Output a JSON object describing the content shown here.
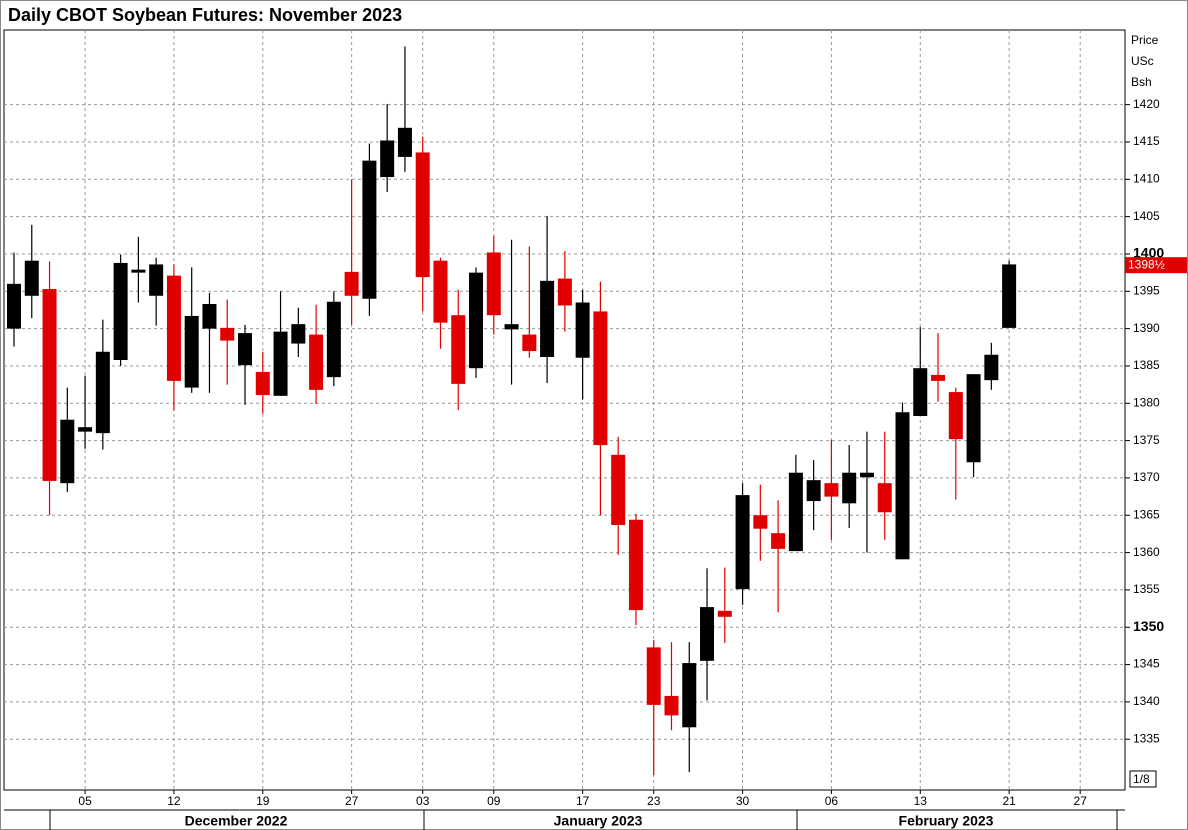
{
  "chart_data": {
    "type": "candlestick",
    "title": "Daily CBOT Soybean Futures: November 2023",
    "unit_label": [
      "Price",
      "USc",
      "Bsh"
    ],
    "scale_note": "1/8",
    "categories": [
      null,
      null,
      null,
      null,
      "05",
      null,
      null,
      null,
      null,
      "12",
      null,
      null,
      null,
      null,
      "19",
      null,
      null,
      null,
      null,
      "27",
      null,
      null,
      null,
      "03",
      null,
      null,
      null,
      "09",
      null,
      null,
      null,
      null,
      "17",
      null,
      null,
      null,
      "23",
      null,
      null,
      null,
      null,
      "30",
      null,
      null,
      null,
      null,
      "06",
      null,
      null,
      null,
      null,
      "13",
      null,
      null,
      null,
      null,
      "21",
      null,
      null,
      null,
      "27"
    ],
    "months": [
      "December 2022",
      "January 2023",
      "February 2023"
    ],
    "open": [
      1390,
      1394.4,
      1395.3,
      1369.3,
      1376.2,
      1376,
      1385.8,
      1397.5,
      1394.4,
      1397.1,
      1382.1,
      1390,
      1390.1,
      1385.1,
      1384.2,
      1381,
      1388,
      1389.2,
      1383.5,
      1397.6,
      1394,
      1410.3,
      1413,
      1413.6,
      1399.1,
      1391.8,
      1384.7,
      1400.2,
      1389.9,
      1389.2,
      1386.2,
      1396.7,
      1386.1,
      1392.3,
      1373.1,
      1364.4,
      1347.3,
      1340.8,
      1336.6,
      1345.5,
      1352.2,
      1355.1,
      1365,
      1362.6,
      1360.2,
      1366.9,
      1369.3,
      1366.6,
      1370.1,
      1369.3,
      1359.1,
      1378.3,
      1383.8,
      1381.5,
      1372.1,
      1383.1,
      1390.1,
      null,
      null,
      null,
      null
    ],
    "high": [
      1400.2,
      1403.9,
      1399,
      1382.1,
      1383.7,
      1391.2,
      1399.9,
      1402.3,
      1399.5,
      1398.6,
      1398.2,
      1394.8,
      1393.9,
      1390.5,
      1386.9,
      1395,
      1392.8,
      1393.2,
      1395,
      1410,
      1414.8,
      1420.1,
      1427.8,
      1415.7,
      1399.5,
      1395.2,
      1398.2,
      1402.4,
      1401.9,
      1401,
      1405.1,
      1400.4,
      1395.2,
      1396.3,
      1375.5,
      1365.2,
      1348.3,
      1348,
      1348,
      1357.9,
      1358,
      1369.3,
      1369.1,
      1367,
      1373.1,
      1372.4,
      1375.1,
      1374.4,
      1376.2,
      1376.2,
      1380.1,
      1390.2,
      1389.4,
      1382.1,
      1383.9,
      1388.1,
      1399.1,
      null,
      null,
      null,
      null
    ],
    "low": [
      1387.6,
      1391.4,
      1365,
      1368.1,
      1373.9,
      1373.8,
      1385,
      1393.5,
      1390.4,
      1379,
      1381.4,
      1381.4,
      1382.5,
      1379.8,
      1378.6,
      1381,
      1386.2,
      1379.9,
      1382.3,
      1390.5,
      1391.7,
      1408.3,
      1411,
      1392.3,
      1387.3,
      1379.1,
      1383.4,
      1389.2,
      1382.5,
      1386.1,
      1382.7,
      1389.6,
      1380.5,
      1365,
      1359.7,
      1350.3,
      1330.2,
      1336.2,
      1330.6,
      1340.2,
      1347.9,
      1353,
      1358.9,
      1352,
      1360.2,
      1363,
      1361.7,
      1363.3,
      1360,
      1361.7,
      1359.1,
      1378.3,
      1380.2,
      1367.1,
      1370.1,
      1381.8,
      1390.1,
      null,
      null,
      null,
      null
    ],
    "close": [
      1396,
      1399.1,
      1369.6,
      1377.8,
      1376.8,
      1386.9,
      1398.8,
      1397.9,
      1398.6,
      1383,
      1391.7,
      1393.3,
      1388.4,
      1389.4,
      1381.1,
      1389.6,
      1390.6,
      1381.8,
      1393.6,
      1394.4,
      1412.5,
      1415.2,
      1416.9,
      1396.9,
      1390.8,
      1382.6,
      1397.5,
      1391.8,
      1390.6,
      1387,
      1396.4,
      1393.1,
      1393.5,
      1374.4,
      1363.7,
      1352.3,
      1339.6,
      1338.2,
      1345.2,
      1352.7,
      1351.4,
      1367.7,
      1363.2,
      1360.5,
      1370.7,
      1369.7,
      1367.5,
      1370.7,
      1370.7,
      1365.4,
      1378.8,
      1384.7,
      1383,
      1375.2,
      1383.9,
      1386.5,
      1398.6,
      null,
      null,
      null,
      null
    ],
    "up_color": "#000000",
    "down_color": "#e00000",
    "last_price": {
      "value": 1398.5,
      "label": "1398½"
    },
    "ylim": [
      1328.2,
      1430
    ],
    "yticks": [
      1335,
      1340,
      1345,
      1350,
      1355,
      1360,
      1365,
      1370,
      1375,
      1380,
      1385,
      1390,
      1395,
      1400,
      1405,
      1410,
      1415,
      1420
    ],
    "bold_ticks": [
      1350,
      1400
    ],
    "grid": true
  }
}
